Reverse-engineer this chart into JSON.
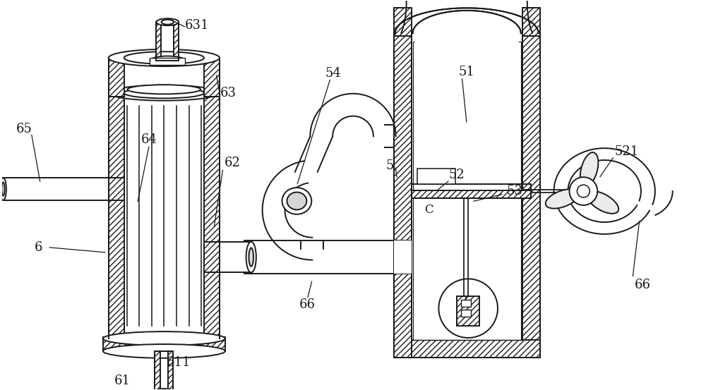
{
  "bg_color": "#ffffff",
  "line_color": "#1a1a1a",
  "line_width": 1.4,
  "label_fontsize": 13,
  "figsize": [
    10.0,
    5.53
  ],
  "dpi": 100
}
